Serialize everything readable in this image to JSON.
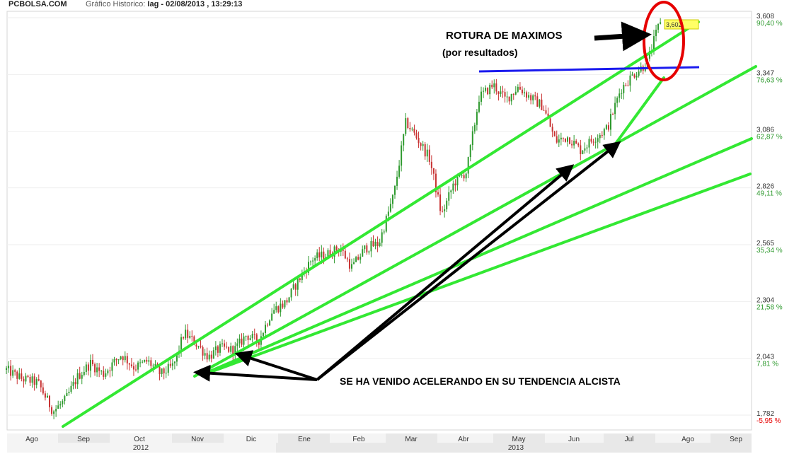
{
  "header": {
    "site": "PCBOLSA.COM",
    "info_label": "Gráfico Historico:",
    "info_value": "Iag - 02/08/2013 , 13:29:13"
  },
  "colors": {
    "up": "#2f9a2f",
    "down": "#c83232",
    "trendline": "#33e833",
    "resistance": "#1a1aee",
    "arrow": "#000000",
    "circle": "#e60000",
    "last_price_box": "#ffff66",
    "pct_text": "#2f9a2f",
    "neg_pct_text": "#e60000",
    "axis_band": "#e8e8e8"
  },
  "chart_data": {
    "type": "candlestick",
    "title": "",
    "y_axis": {
      "range": [
        1.782,
        3.608
      ],
      "ticks": [
        {
          "price": "3,608",
          "pct": "90,40 %"
        },
        {
          "price": "3,347",
          "pct": "76,63 %"
        },
        {
          "price": "3,086",
          "pct": "62,87 %"
        },
        {
          "price": "2,826",
          "pct": "49,11 %"
        },
        {
          "price": "2,565",
          "pct": "35,34 %"
        },
        {
          "price": "2,304",
          "pct": "21,58 %"
        },
        {
          "price": "2,043",
          "pct": "7,81 %"
        },
        {
          "price": "1,782",
          "pct": "-5,95 %"
        }
      ]
    },
    "x_axis": {
      "months": [
        "Ago",
        "Sep",
        "Oct",
        "Nov",
        "Dic",
        "Ene",
        "Feb",
        "Mar",
        "Abr",
        "May",
        "Jun",
        "Jul",
        "Ago",
        "Sep"
      ],
      "years": [
        "2012",
        "2013"
      ]
    },
    "last_price": "3,602",
    "price_path": [
      {
        "date": "2012-08-01",
        "price": 1.99
      },
      {
        "date": "2012-08-10",
        "price": 1.95
      },
      {
        "date": "2012-08-20",
        "price": 1.93
      },
      {
        "date": "2012-08-29",
        "price": 1.8
      },
      {
        "date": "2012-09-05",
        "price": 1.85
      },
      {
        "date": "2012-09-12",
        "price": 1.96
      },
      {
        "date": "2012-09-19",
        "price": 2.02
      },
      {
        "date": "2012-09-26",
        "price": 1.97
      },
      {
        "date": "2012-10-05",
        "price": 2.06
      },
      {
        "date": "2012-10-12",
        "price": 2.0
      },
      {
        "date": "2012-10-19",
        "price": 2.03
      },
      {
        "date": "2012-10-26",
        "price": 1.97
      },
      {
        "date": "2012-11-02",
        "price": 2.01
      },
      {
        "date": "2012-11-08",
        "price": 2.16
      },
      {
        "date": "2012-11-15",
        "price": 2.11
      },
      {
        "date": "2012-11-22",
        "price": 2.05
      },
      {
        "date": "2012-11-29",
        "price": 2.09
      },
      {
        "date": "2012-12-06",
        "price": 2.08
      },
      {
        "date": "2012-12-13",
        "price": 2.15
      },
      {
        "date": "2012-12-20",
        "price": 2.12
      },
      {
        "date": "2012-12-28",
        "price": 2.26
      },
      {
        "date": "2013-01-05",
        "price": 2.3
      },
      {
        "date": "2013-01-12",
        "price": 2.4
      },
      {
        "date": "2013-01-20",
        "price": 2.5
      },
      {
        "date": "2013-01-28",
        "price": 2.52
      },
      {
        "date": "2013-02-05",
        "price": 2.55
      },
      {
        "date": "2013-02-12",
        "price": 2.46
      },
      {
        "date": "2013-02-20",
        "price": 2.55
      },
      {
        "date": "2013-02-28",
        "price": 2.57
      },
      {
        "date": "2013-03-06",
        "price": 2.8
      },
      {
        "date": "2013-03-13",
        "price": 3.13
      },
      {
        "date": "2013-03-20",
        "price": 3.05
      },
      {
        "date": "2013-03-27",
        "price": 2.96
      },
      {
        "date": "2013-04-03",
        "price": 2.7
      },
      {
        "date": "2013-04-10",
        "price": 2.85
      },
      {
        "date": "2013-04-17",
        "price": 2.9
      },
      {
        "date": "2013-04-24",
        "price": 3.24
      },
      {
        "date": "2013-05-01",
        "price": 3.3
      },
      {
        "date": "2013-05-08",
        "price": 3.23
      },
      {
        "date": "2013-05-15",
        "price": 3.29
      },
      {
        "date": "2013-05-22",
        "price": 3.24
      },
      {
        "date": "2013-05-29",
        "price": 3.2
      },
      {
        "date": "2013-06-05",
        "price": 3.04
      },
      {
        "date": "2013-06-12",
        "price": 3.06
      },
      {
        "date": "2013-06-19",
        "price": 3.0
      },
      {
        "date": "2013-06-26",
        "price": 3.05
      },
      {
        "date": "2013-07-03",
        "price": 3.1
      },
      {
        "date": "2013-07-10",
        "price": 3.28
      },
      {
        "date": "2013-07-17",
        "price": 3.35
      },
      {
        "date": "2013-07-24",
        "price": 3.4
      },
      {
        "date": "2013-07-31",
        "price": 3.6
      }
    ],
    "annotations": {
      "breakout_title": "ROTURA DE MAXIMOS",
      "breakout_subtitle": "(por resultados)",
      "trend_note": "SE HA VENIDO ACELERANDO EN SU TENDENCIA ALCISTA"
    }
  }
}
